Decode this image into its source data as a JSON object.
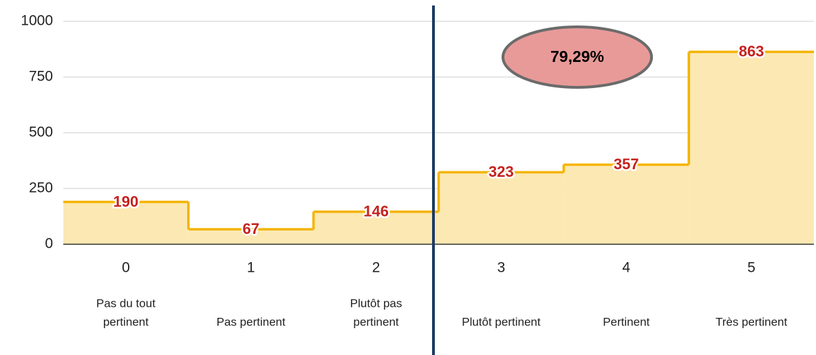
{
  "chart_data": {
    "type": "step-area",
    "categories": [
      "0",
      "1",
      "2",
      "3",
      "4",
      "5"
    ],
    "descriptions": [
      [
        "Pas du tout",
        "pertinent"
      ],
      [
        "Pas pertinent"
      ],
      [
        "Plutôt pas",
        "pertinent"
      ],
      [
        "Plutôt pertinent"
      ],
      [
        "Pertinent"
      ],
      [
        "Très pertinent"
      ]
    ],
    "values": [
      190,
      67,
      146,
      323,
      357,
      863
    ],
    "color": "#f4b400",
    "fill": "#fce8b2",
    "label_color": "#c5221f",
    "ylim": [
      0,
      1000
    ],
    "yticks": [
      0,
      250,
      500,
      750,
      1000
    ],
    "grid": true,
    "annotation": "79,29%"
  }
}
